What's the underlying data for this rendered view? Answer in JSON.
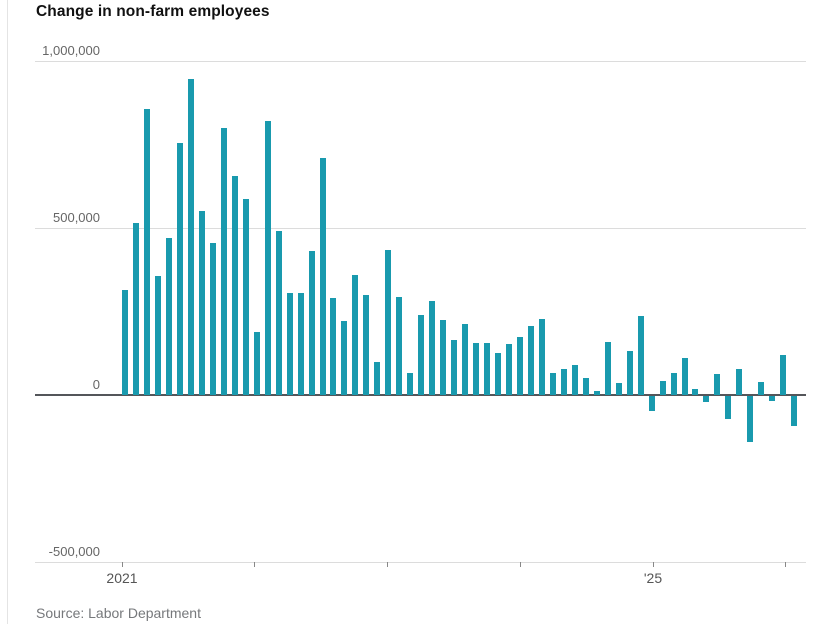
{
  "page": {
    "title": "Change in non-farm employees",
    "source": "Source: Labor Department"
  },
  "colors": {
    "bar": "#199aae",
    "grid": "#dcdcdc",
    "zero_axis": "#54565a",
    "tick": "#888888",
    "label_text": "#666666",
    "title_text": "#111111",
    "source_text": "#76787b"
  },
  "chart_data": {
    "type": "bar",
    "title": "Change in non-farm employees",
    "source": "Source: Labor Department",
    "xlabel": "",
    "ylabel": "",
    "ylim": [
      -500000,
      1000000
    ],
    "grid": "horizontal",
    "legend": "none",
    "bar_color": "#199aae",
    "y_ticks": [
      {
        "value": 1000000,
        "label": "1,000,000"
      },
      {
        "value": 500000,
        "label": "500,000"
      },
      {
        "value": 0,
        "label": "0"
      },
      {
        "value": -500000,
        "label": "-500,000"
      }
    ],
    "x_ticks": [
      {
        "label": "2021"
      },
      {
        "label": ""
      },
      {
        "label": ""
      },
      {
        "label": ""
      },
      {
        "label": "'25"
      },
      {
        "label": ""
      }
    ],
    "values": [
      315000,
      515000,
      855000,
      355000,
      470000,
      755000,
      945000,
      550000,
      455000,
      800000,
      655000,
      585000,
      190000,
      820000,
      490000,
      305000,
      305000,
      430000,
      710000,
      290000,
      220000,
      360000,
      300000,
      100000,
      435000,
      292000,
      67000,
      240000,
      280000,
      225000,
      165000,
      212000,
      157000,
      157000,
      127000,
      152000,
      175000,
      207000,
      227000,
      65000,
      77000,
      90000,
      52000,
      12000,
      158000,
      35000,
      133000,
      237000,
      -45000,
      42000,
      65000,
      110000,
      17000,
      -18000,
      63000,
      -68000,
      78000,
      -138000,
      40000,
      -15000,
      120000,
      -90000
    ]
  }
}
